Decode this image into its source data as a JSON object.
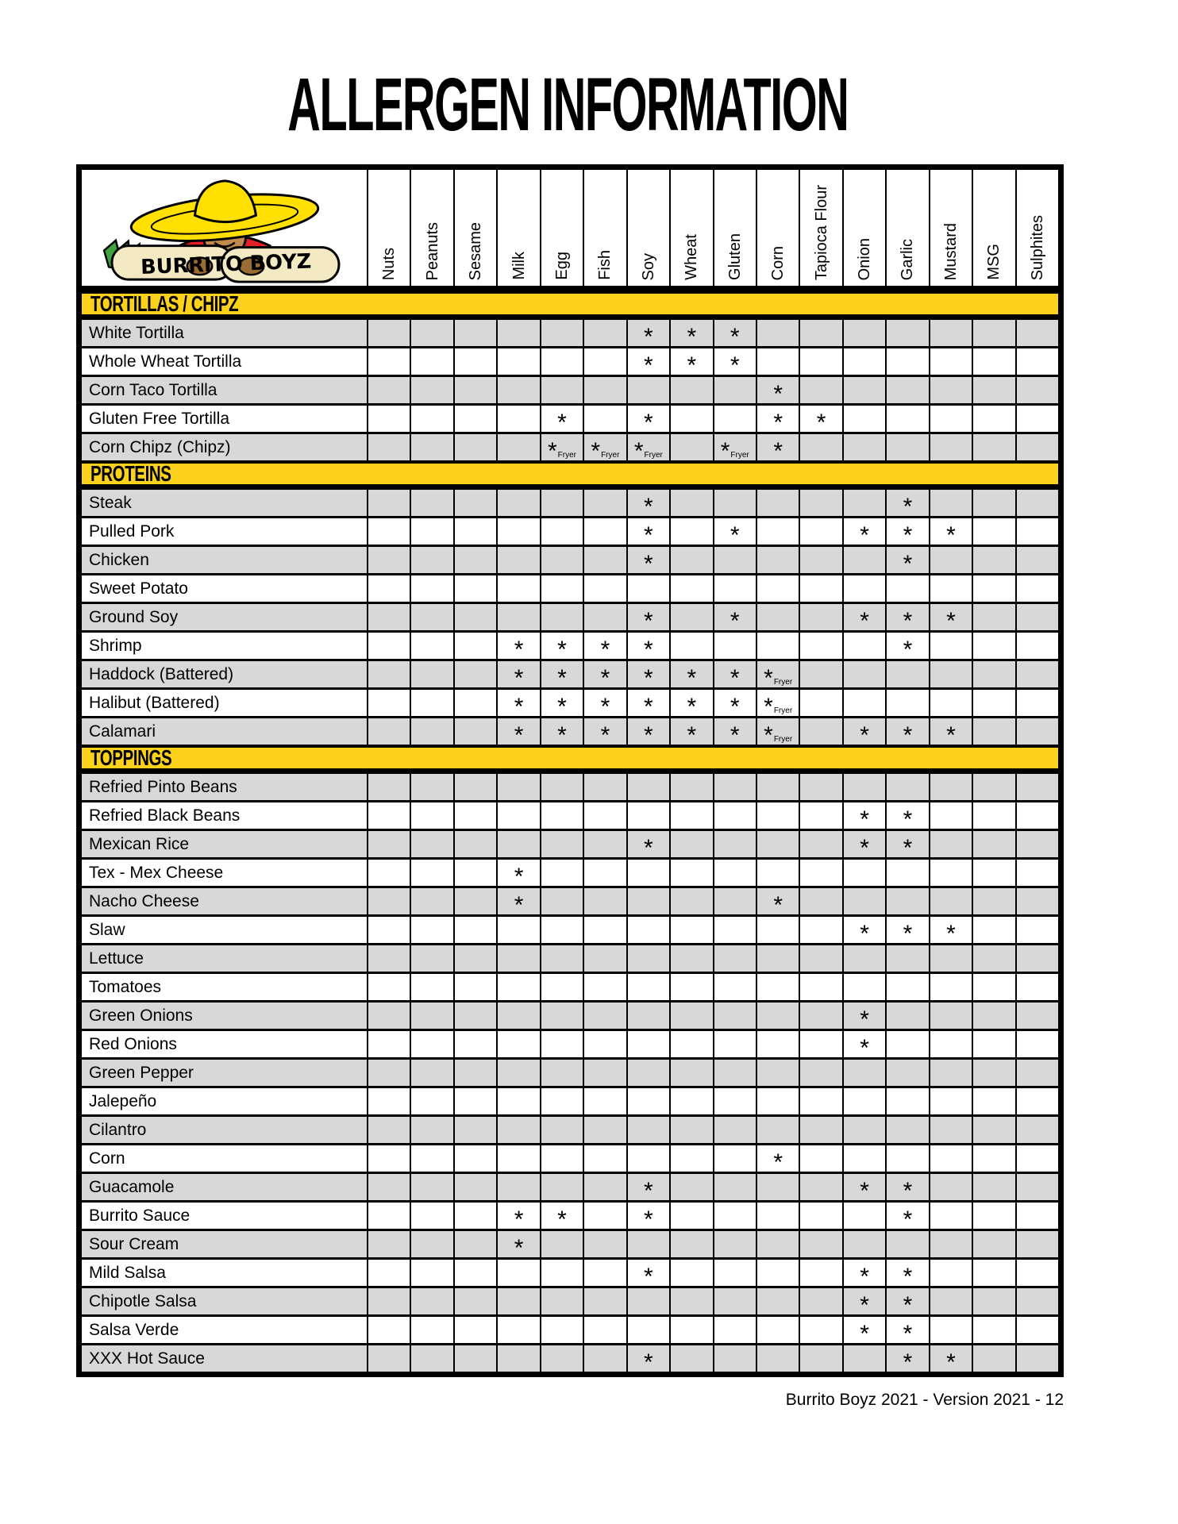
{
  "page": {
    "title": "ALLERGEN INFORMATION",
    "footer": "Burrito Boyz 2021 - Version 2021 - 12"
  },
  "logo": {
    "brand": "BURRITO BOYZ",
    "icon": "burrito-boy-mascot"
  },
  "colors": {
    "section_bar": "#FCD11C",
    "row_shade": "#D8D8D8",
    "border": "#000000",
    "sombrero": "#FFE000",
    "shirt": "#E31E24",
    "skin": "#C08A4E",
    "burrito": "#F3EAC3",
    "lettuce": "#3DA43D"
  },
  "fryer_label": "Fryer",
  "allergens": [
    "Nuts",
    "Peanuts",
    "Sesame",
    "Milk",
    "Egg",
    "Fish",
    "Soy",
    "Wheat",
    "Gluten",
    "Corn",
    "Tapioca Flour",
    "Onion",
    "Garlic",
    "Mustard",
    "MSG",
    "Sulphites"
  ],
  "sections": [
    {
      "label": "TORTILLAS / CHIPZ",
      "rows": [
        {
          "item": "White Tortilla",
          "marks": {
            "Soy": "*",
            "Wheat": "*",
            "Gluten": "*"
          }
        },
        {
          "item": "Whole Wheat Tortilla",
          "marks": {
            "Soy": "*",
            "Wheat": "*",
            "Gluten": "*"
          }
        },
        {
          "item": "Corn Taco Tortilla",
          "marks": {
            "Corn": "*"
          }
        },
        {
          "item": "Gluten Free Tortilla",
          "marks": {
            "Egg": "*",
            "Soy": "*",
            "Corn": "*",
            "Tapioca Flour": "*"
          }
        },
        {
          "item": "Corn Chipz (Chipz)",
          "marks": {
            "Egg": "*Fryer",
            "Fish": "*Fryer",
            "Soy": "*Fryer",
            "Gluten": "*Fryer",
            "Corn": "*"
          }
        }
      ]
    },
    {
      "label": "PROTEINS",
      "rows": [
        {
          "item": "Steak",
          "marks": {
            "Soy": "*",
            "Garlic": "*"
          }
        },
        {
          "item": "Pulled Pork",
          "marks": {
            "Soy": "*",
            "Gluten": "*",
            "Onion": "*",
            "Garlic": "*",
            "Mustard": "*"
          }
        },
        {
          "item": "Chicken",
          "marks": {
            "Soy": "*",
            "Garlic": "*"
          }
        },
        {
          "item": "Sweet Potato",
          "marks": {}
        },
        {
          "item": "Ground Soy",
          "marks": {
            "Soy": "*",
            "Gluten": "*",
            "Onion": "*",
            "Garlic": "*",
            "Mustard": "*"
          }
        },
        {
          "item": "Shrimp",
          "marks": {
            "Milk": "*",
            "Egg": "*",
            "Fish": "*",
            "Soy": "*",
            "Garlic": "*"
          }
        },
        {
          "item": "Haddock (Battered)",
          "marks": {
            "Milk": "*",
            "Egg": "*",
            "Fish": "*",
            "Soy": "*",
            "Wheat": "*",
            "Gluten": "*",
            "Corn": "*Fryer"
          }
        },
        {
          "item": "Halibut (Battered)",
          "marks": {
            "Milk": "*",
            "Egg": "*",
            "Fish": "*",
            "Soy": "*",
            "Wheat": "*",
            "Gluten": "*",
            "Corn": "*Fryer"
          }
        },
        {
          "item": "Calamari",
          "marks": {
            "Milk": "*",
            "Egg": "*",
            "Fish": "*",
            "Soy": "*",
            "Wheat": "*",
            "Gluten": "*",
            "Corn": "*Fryer",
            "Onion": "*",
            "Garlic": "*",
            "Mustard": "*"
          }
        }
      ]
    },
    {
      "label": "TOPPINGS",
      "rows": [
        {
          "item": "Refried Pinto Beans",
          "marks": {}
        },
        {
          "item": "Refried Black Beans",
          "marks": {
            "Onion": "*",
            "Garlic": "*"
          }
        },
        {
          "item": "Mexican Rice",
          "marks": {
            "Soy": "*",
            "Onion": "*",
            "Garlic": "*"
          }
        },
        {
          "item": "Tex - Mex Cheese",
          "marks": {
            "Milk": "*"
          }
        },
        {
          "item": "Nacho Cheese",
          "marks": {
            "Milk": "*",
            "Corn": "*"
          }
        },
        {
          "item": "Slaw",
          "marks": {
            "Onion": "*",
            "Garlic": "*",
            "Mustard": "*"
          }
        },
        {
          "item": "Lettuce",
          "marks": {}
        },
        {
          "item": "Tomatoes",
          "marks": {}
        },
        {
          "item": "Green Onions",
          "marks": {
            "Onion": "*"
          }
        },
        {
          "item": "Red Onions",
          "marks": {
            "Onion": "*"
          }
        },
        {
          "item": "Green Pepper",
          "marks": {}
        },
        {
          "item": "Jalepeño",
          "marks": {}
        },
        {
          "item": "Cilantro",
          "marks": {}
        },
        {
          "item": "Corn",
          "marks": {
            "Corn": "*"
          }
        },
        {
          "item": "Guacamole",
          "marks": {
            "Soy": "*",
            "Onion": "*",
            "Garlic": "*"
          }
        },
        {
          "item": "Burrito Sauce",
          "marks": {
            "Milk": "*",
            "Egg": "*",
            "Soy": "*",
            "Garlic": "*"
          }
        },
        {
          "item": "Sour Cream",
          "marks": {
            "Milk": "*"
          }
        },
        {
          "item": "Mild Salsa",
          "marks": {
            "Soy": "*",
            "Onion": "*",
            "Garlic": "*"
          }
        },
        {
          "item": "Chipotle Salsa",
          "marks": {
            "Onion": "*",
            "Garlic": "*"
          }
        },
        {
          "item": "Salsa Verde",
          "marks": {
            "Onion": "*",
            "Garlic": "*"
          }
        },
        {
          "item": "XXX Hot Sauce",
          "marks": {
            "Soy": "*",
            "Garlic": "*",
            "Mustard": "*"
          }
        }
      ]
    }
  ]
}
